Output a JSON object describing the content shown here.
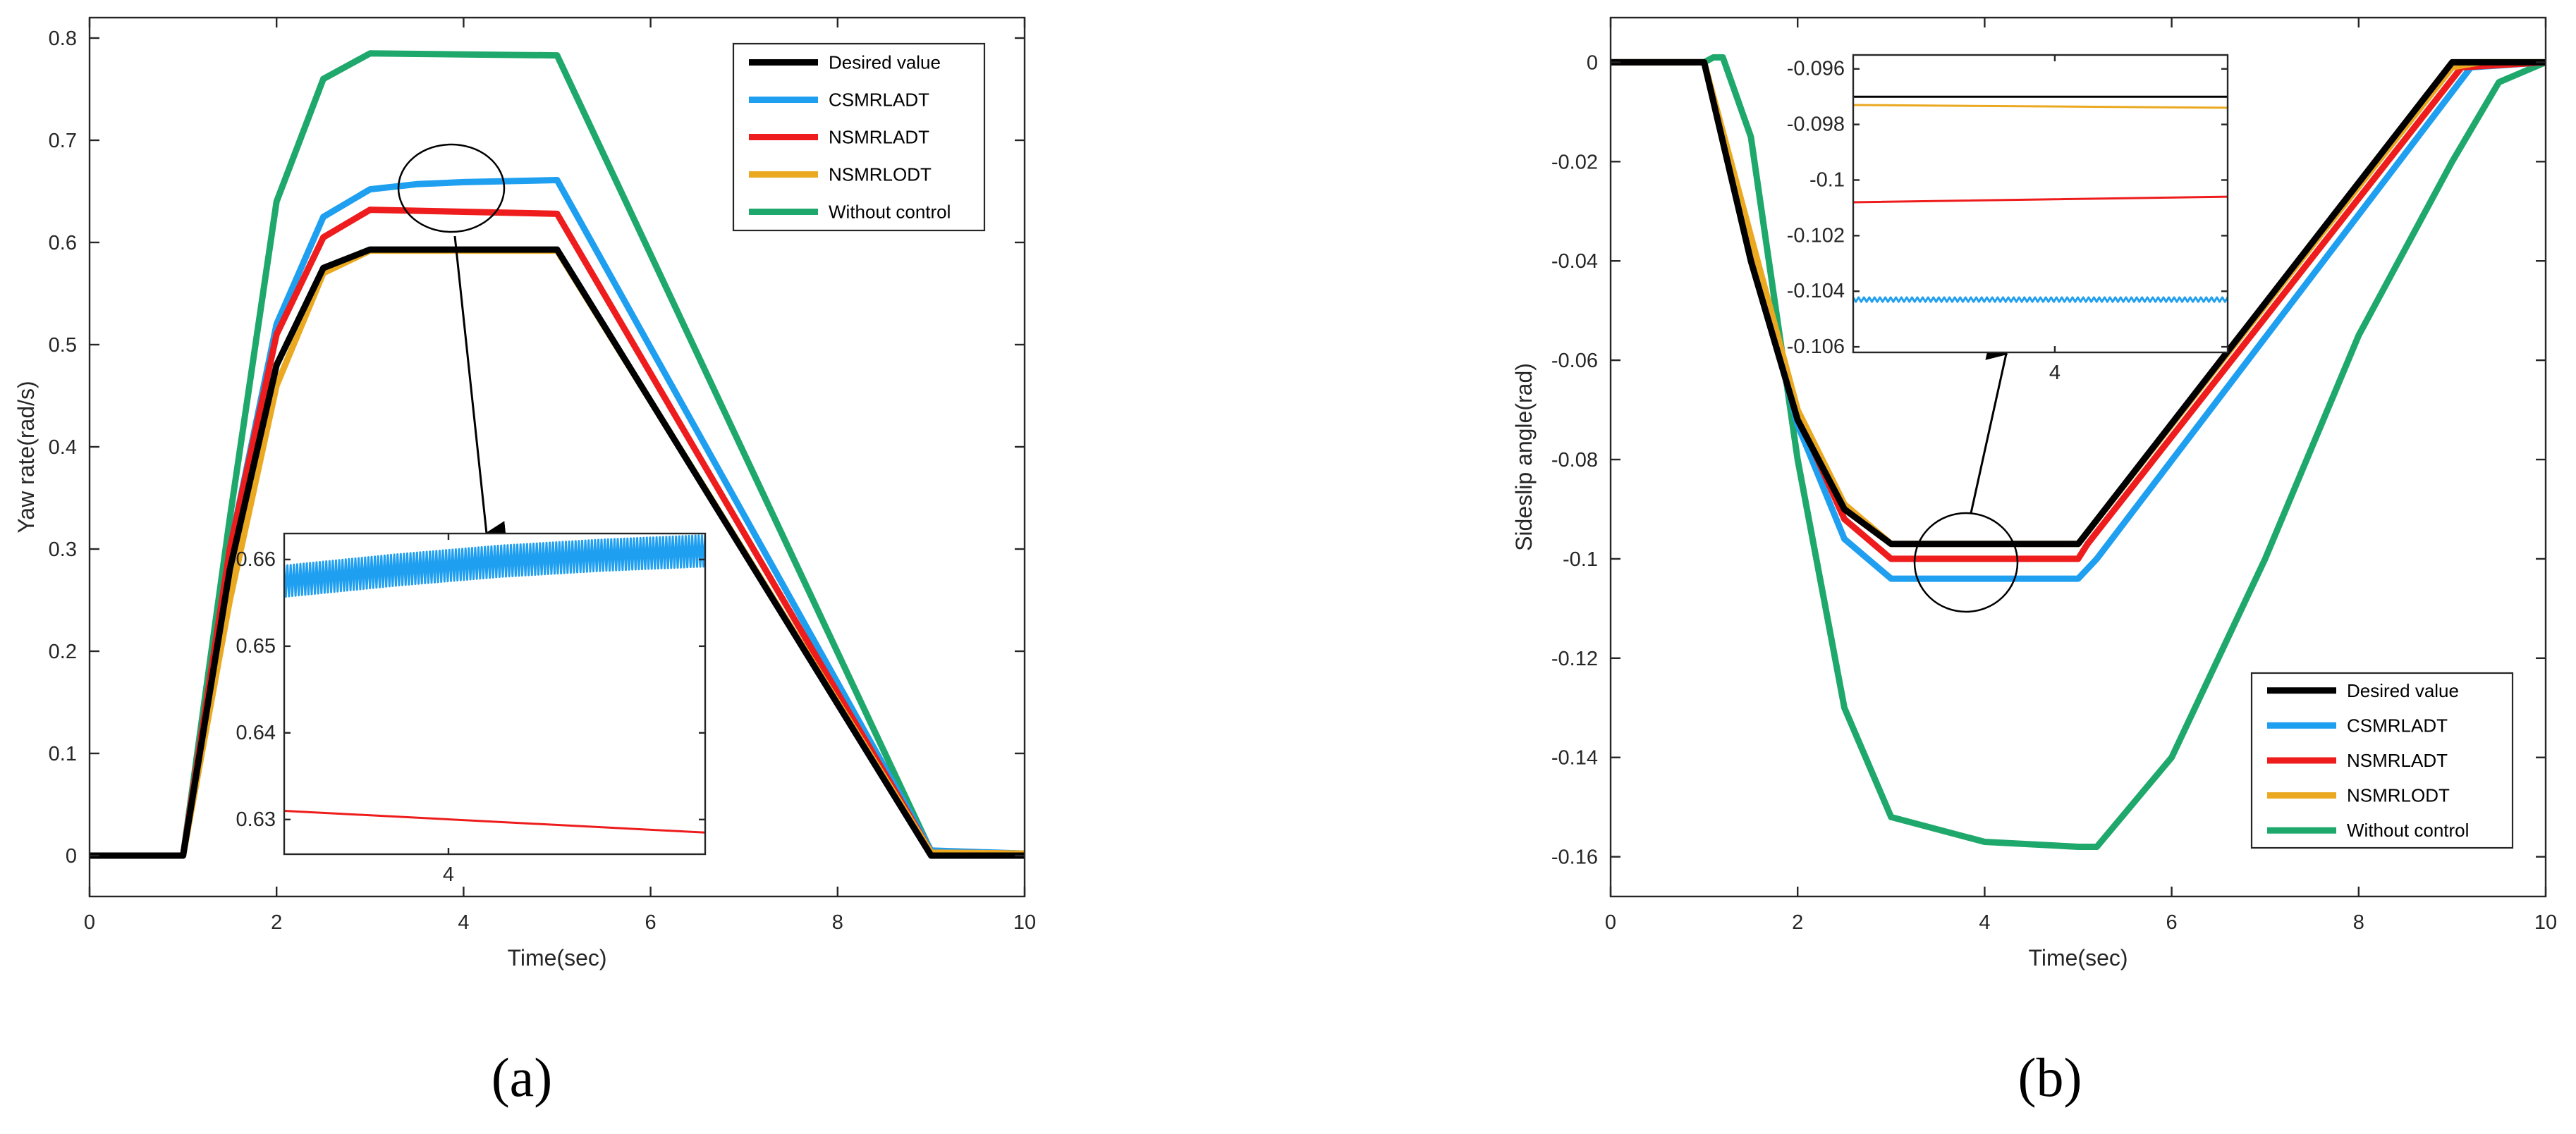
{
  "series_colors": {
    "Desired value": "#000000",
    "CSMRLADT": "#1f9ff0",
    "NSMRLADT": "#ee1c1c",
    "NSMRLODT": "#eaa920",
    "Without control": "#1fa86b"
  },
  "chart_data": [
    {
      "type": "line",
      "panel_label": "(a)",
      "xlabel": "Time(sec)",
      "ylabel": "Yaw rate(rad/s)",
      "xlim": [
        0,
        10
      ],
      "ylim": [
        -0.04,
        0.82
      ],
      "xticks": [
        0,
        2,
        4,
        6,
        8,
        10
      ],
      "yticks": [
        0,
        0.1,
        0.2,
        0.3,
        0.4,
        0.5,
        0.6,
        0.7,
        0.8
      ],
      "yticklabels": [
        "0",
        "0.1",
        "0.2",
        "0.3",
        "0.4",
        "0.5",
        "0.6",
        "0.7",
        "0.8"
      ],
      "legend_position": "top-right",
      "legend": [
        "Desired value",
        "CSMRLADT",
        "NSMRLADT",
        "NSMRLODT",
        "Without control"
      ],
      "series": [
        {
          "name": "Desired value",
          "x": [
            0,
            1,
            1.5,
            2,
            2.5,
            3,
            5,
            9,
            10
          ],
          "y": [
            0,
            0,
            0.28,
            0.48,
            0.575,
            0.593,
            0.593,
            0,
            0
          ]
        },
        {
          "name": "CSMRLADT",
          "x": [
            0,
            1,
            1.5,
            2,
            2.5,
            3,
            3.5,
            4,
            5,
            9,
            10
          ],
          "y": [
            0,
            0,
            0.3,
            0.52,
            0.625,
            0.652,
            0.657,
            0.659,
            0.661,
            0.005,
            0.002
          ]
        },
        {
          "name": "NSMRLADT",
          "x": [
            0,
            1,
            1.5,
            2,
            2.5,
            3,
            4,
            5,
            9,
            10
          ],
          "y": [
            0,
            0,
            0.3,
            0.51,
            0.605,
            0.632,
            0.63,
            0.628,
            0.003,
            0.002
          ]
        },
        {
          "name": "NSMRLODT",
          "x": [
            0,
            1,
            1.5,
            2,
            2.5,
            3,
            5,
            9,
            10
          ],
          "y": [
            0,
            0,
            0.25,
            0.46,
            0.57,
            0.592,
            0.592,
            0.003,
            0.002
          ]
        },
        {
          "name": "Without control",
          "x": [
            0,
            1,
            1.5,
            2,
            2.5,
            3,
            5,
            9,
            10
          ],
          "y": [
            0,
            0,
            0.33,
            0.64,
            0.76,
            0.785,
            0.783,
            0.004,
            0.002
          ]
        }
      ],
      "inset": {
        "xlim": [
          2.4,
          6.5
        ],
        "ylim": [
          0.626,
          0.663
        ],
        "xticks": [
          4
        ],
        "yticks": [
          0.63,
          0.64,
          0.65,
          0.66
        ],
        "yticklabels": [
          "0.63",
          "0.64",
          "0.65",
          "0.66"
        ],
        "series": [
          {
            "name": "CSMRLADT",
            "x": [
              2.4,
              3.5,
              4.5,
              5.5,
              6.5
            ],
            "y": [
              0.6575,
              0.6588,
              0.6598,
              0.6605,
              0.661
            ],
            "oscillation": 0.0018
          },
          {
            "name": "NSMRLADT",
            "x": [
              2.4,
              6.5
            ],
            "y": [
              0.631,
              0.6285
            ]
          }
        ]
      }
    },
    {
      "type": "line",
      "panel_label": "(b)",
      "xlabel": "Time(sec)",
      "ylabel": "Sideslip angle(rad)",
      "xlim": [
        0,
        10
      ],
      "ylim": [
        -0.168,
        0.009
      ],
      "xticks": [
        0,
        2,
        4,
        6,
        8,
        10
      ],
      "yticks": [
        0,
        -0.02,
        -0.04,
        -0.06,
        -0.08,
        -0.1,
        -0.12,
        -0.14,
        -0.16
      ],
      "yticklabels": [
        "0",
        "-0.02",
        "-0.04",
        "-0.06",
        "-0.08",
        "-0.1",
        "-0.12",
        "-0.14",
        "-0.16"
      ],
      "legend_position": "bottom-right",
      "legend": [
        "Desired value",
        "CSMRLADT",
        "NSMRLADT",
        "NSMRLODT",
        "Without control"
      ],
      "series": [
        {
          "name": "Desired value",
          "x": [
            0,
            1,
            1.5,
            2,
            2.5,
            3,
            5,
            9,
            10
          ],
          "y": [
            0,
            0,
            -0.04,
            -0.072,
            -0.09,
            -0.097,
            -0.097,
            0,
            0
          ]
        },
        {
          "name": "CSMRLADT",
          "x": [
            0,
            1,
            1.5,
            2,
            2.5,
            3,
            5,
            5.2,
            9.2,
            10
          ],
          "y": [
            0,
            0,
            -0.037,
            -0.073,
            -0.096,
            -0.104,
            -0.104,
            -0.1,
            -0.001,
            0
          ]
        },
        {
          "name": "NSMRLADT",
          "x": [
            0,
            1,
            1.5,
            2,
            2.5,
            3,
            5,
            5.1,
            9.1,
            10
          ],
          "y": [
            0,
            0,
            -0.037,
            -0.071,
            -0.092,
            -0.1,
            -0.1,
            -0.097,
            -0.001,
            0
          ]
        },
        {
          "name": "NSMRLODT",
          "x": [
            0,
            1,
            1.5,
            2,
            2.5,
            3,
            5,
            9,
            9.3,
            10
          ],
          "y": [
            0,
            0,
            -0.035,
            -0.07,
            -0.089,
            -0.097,
            -0.097,
            -0.001,
            0,
            0
          ]
        },
        {
          "name": "Without control",
          "x": [
            0,
            1,
            1.1,
            1.2,
            1.5,
            2,
            2.5,
            3,
            4,
            5,
            5.2,
            6,
            7,
            8,
            9,
            9.5,
            10
          ],
          "y": [
            0,
            0,
            0.001,
            0.001,
            -0.015,
            -0.08,
            -0.13,
            -0.152,
            -0.157,
            -0.158,
            -0.158,
            -0.14,
            -0.1,
            -0.055,
            -0.02,
            -0.004,
            0
          ]
        }
      ],
      "inset": {
        "xlim": [
          2.6,
          5.2
        ],
        "ylim": [
          -0.1062,
          -0.0955
        ],
        "xticks": [
          4
        ],
        "yticks": [
          -0.096,
          -0.098,
          -0.1,
          -0.102,
          -0.104,
          -0.106
        ],
        "yticklabels": [
          "-0.096",
          "-0.098",
          "-0.1",
          "-0.102",
          "-0.104",
          "-0.106"
        ],
        "series": [
          {
            "name": "Desired value",
            "x": [
              2.6,
              5.2
            ],
            "y": [
              -0.097,
              -0.097
            ]
          },
          {
            "name": "NSMRLODT",
            "x": [
              2.6,
              5.2
            ],
            "y": [
              -0.0973,
              -0.0974
            ]
          },
          {
            "name": "NSMRLADT",
            "x": [
              2.6,
              5.2
            ],
            "y": [
              -0.1008,
              -0.1006
            ]
          },
          {
            "name": "CSMRLADT",
            "x": [
              2.6,
              5.2
            ],
            "y": [
              -0.1043,
              -0.1043
            ],
            "oscillation": 8e-05
          }
        ]
      }
    }
  ]
}
